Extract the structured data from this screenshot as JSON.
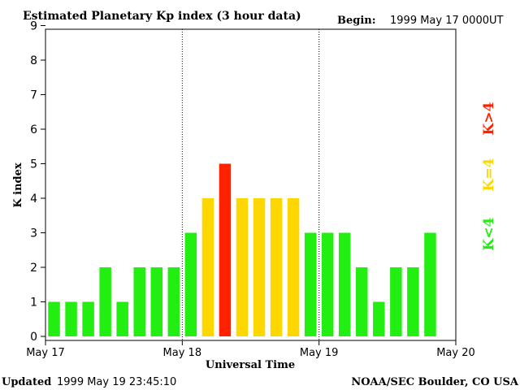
{
  "header": {
    "title": "Estimated Planetary Kp index (3 hour data)",
    "begin_label": "Begin:",
    "begin_value": "1999 May 17 0000UT"
  },
  "footer": {
    "updated_label": "Updated",
    "updated_value": "1999 May 19 23:45:10",
    "source": "NOAA/SEC Boulder, CO USA"
  },
  "legend": {
    "low": "K<4",
    "mid": "K=4",
    "high": "K>4"
  },
  "colors": {
    "low": "#22ee11",
    "mid": "#ffd700",
    "high": "#ff2200",
    "axis": "#000000"
  },
  "chart_data": {
    "type": "bar",
    "title": "Estimated Planetary Kp index (3 hour data)",
    "xlabel": "Universal Time",
    "ylabel": "K index",
    "ylim": [
      0,
      9
    ],
    "yticks": [
      "0",
      "1",
      "2",
      "3",
      "4",
      "5",
      "6",
      "7",
      "8",
      "9"
    ],
    "xticks": [
      "May 17",
      "May 18",
      "May 19",
      "May 20"
    ],
    "day_dividers": [
      "May 18",
      "May 19"
    ],
    "bar_interval_hours": 3,
    "values": [
      1,
      1,
      1,
      2,
      1,
      2,
      2,
      2,
      3,
      4,
      5,
      4,
      4,
      4,
      4,
      3,
      3,
      3,
      2,
      1,
      2,
      2,
      3
    ],
    "grid": false,
    "legend_position": "right"
  }
}
